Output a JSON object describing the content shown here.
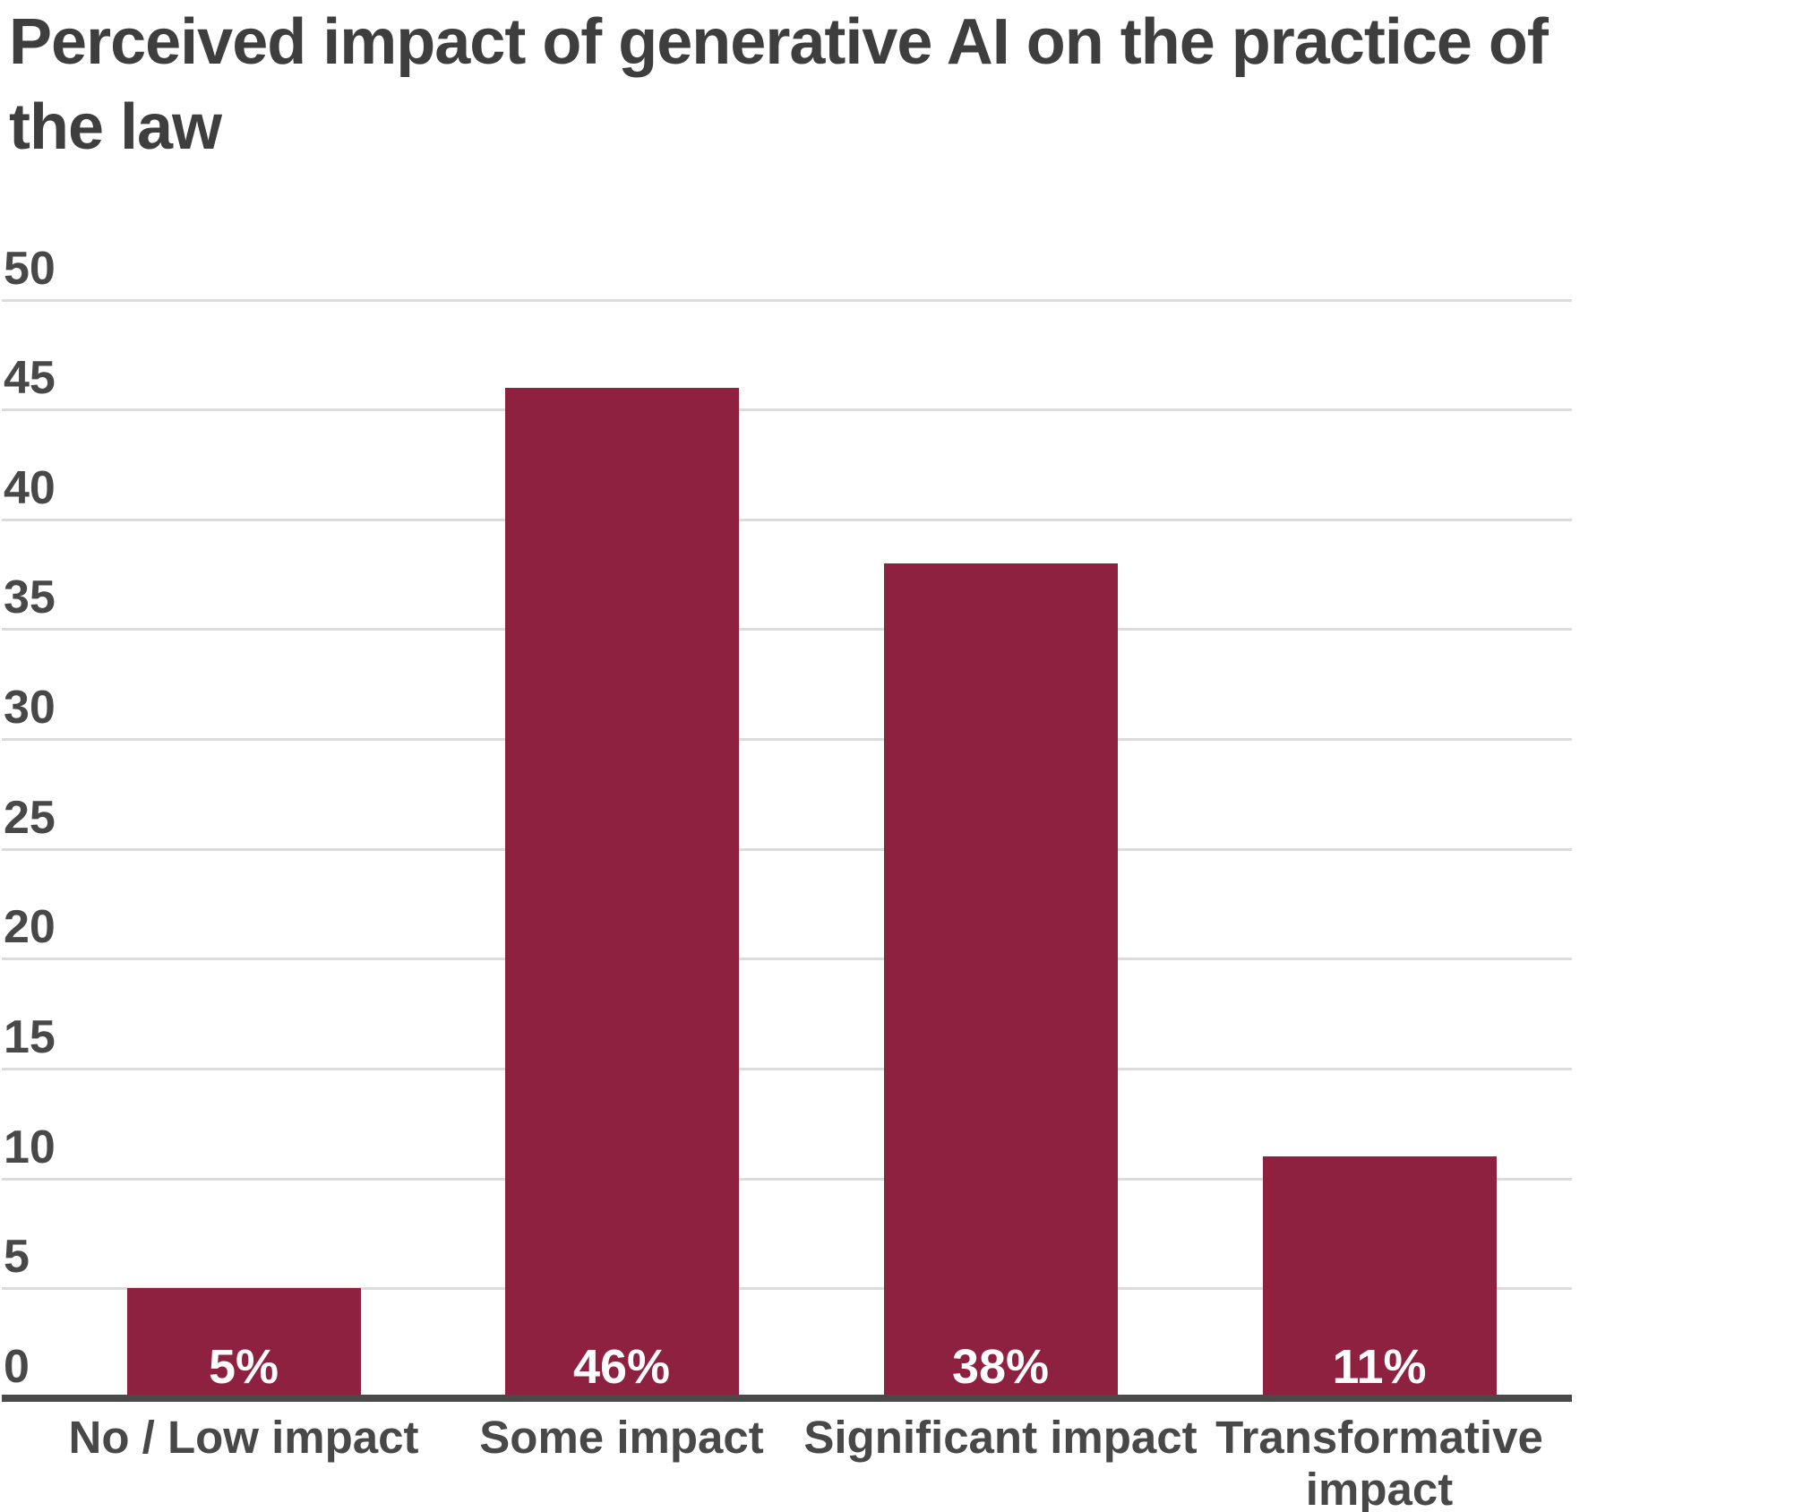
{
  "chart_data": {
    "type": "bar",
    "title": "Perceived impact of generative AI on the practice of\nthe law",
    "xlabel": "",
    "ylabel": "",
    "categories": [
      "No / Low impact",
      "Some impact",
      "Significant impact",
      "Transformative impact"
    ],
    "values": [
      5,
      46,
      38,
      11
    ],
    "value_labels": [
      "5%",
      "46%",
      "38%",
      "11%"
    ],
    "yticks": [
      0,
      5,
      10,
      15,
      20,
      25,
      30,
      35,
      40,
      45,
      50
    ],
    "ylim": [
      0,
      50
    ],
    "grid": "horizontal-only",
    "legend": "none",
    "value_label_position": "inside-bottom",
    "colors": {
      "bar": "#8E2140",
      "title_text": "#3E3E3E",
      "axis_text": "#484848",
      "value_label_text": "#FFFFFF",
      "gridline": "#DCDCDC",
      "axis_line": "#4A4A4A",
      "background": "#FFFFFF"
    }
  }
}
